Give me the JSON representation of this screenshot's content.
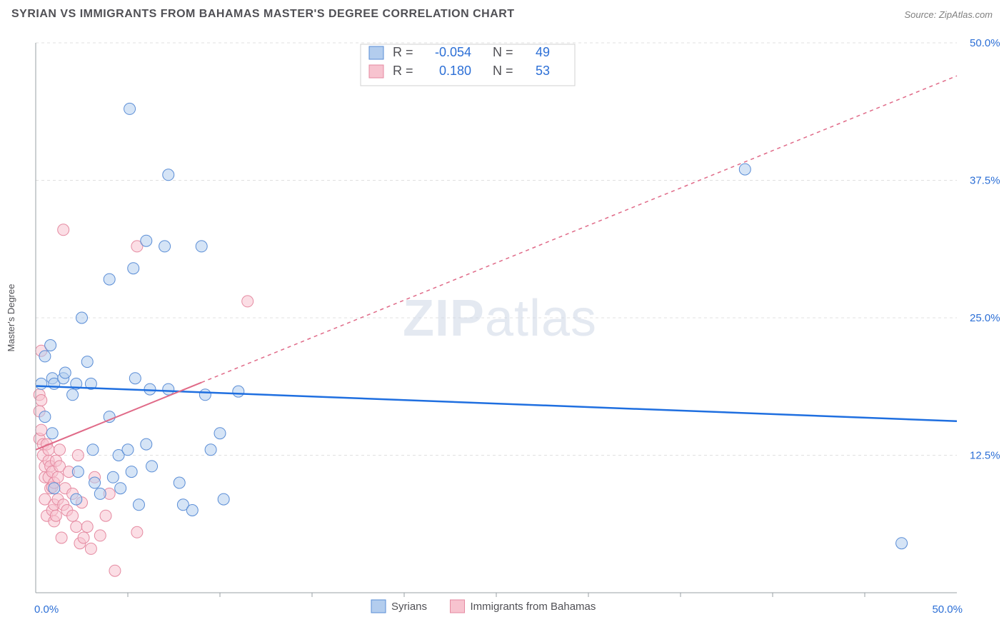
{
  "header": {
    "title": "SYRIAN VS IMMIGRANTS FROM BAHAMAS MASTER'S DEGREE CORRELATION CHART",
    "source": "Source: ZipAtlas.com"
  },
  "watermark": {
    "part1": "ZIP",
    "part2": "atlas"
  },
  "chart": {
    "type": "scatter",
    "background_color": "#ffffff",
    "grid_color": "#e0e0e0",
    "axis_color": "#9aa0a6",
    "y_axis_label": "Master's Degree",
    "y_axis_label_fontsize": 13,
    "xlim": [
      0,
      50
    ],
    "ylim": [
      0,
      50
    ],
    "x_ticks": [
      0,
      50
    ],
    "x_tick_labels": [
      "0.0%",
      "50.0%"
    ],
    "x_minor_ticks": [
      5,
      10,
      15,
      20,
      25,
      30,
      35,
      40,
      45
    ],
    "y_ticks": [
      12.5,
      25.0,
      37.5,
      50.0
    ],
    "y_tick_labels": [
      "12.5%",
      "25.0%",
      "37.5%",
      "50.0%"
    ],
    "tick_label_color": "#2c6fd6",
    "tick_label_fontsize": 15,
    "marker_radius": 8,
    "marker_opacity": 0.55,
    "series": [
      {
        "name": "Syrians",
        "fill": "#b3cdee",
        "stroke": "#5a8dd6",
        "points": [
          [
            0.3,
            19.0
          ],
          [
            0.5,
            21.5
          ],
          [
            0.5,
            16.0
          ],
          [
            0.8,
            22.5
          ],
          [
            0.9,
            19.5
          ],
          [
            1.0,
            19.0
          ],
          [
            0.9,
            14.5
          ],
          [
            1.0,
            9.5
          ],
          [
            1.5,
            19.5
          ],
          [
            1.6,
            20.0
          ],
          [
            2.0,
            18.0
          ],
          [
            2.2,
            19.0
          ],
          [
            2.3,
            11.0
          ],
          [
            2.2,
            8.5
          ],
          [
            2.5,
            25.0
          ],
          [
            2.8,
            21.0
          ],
          [
            3.0,
            19.0
          ],
          [
            3.2,
            10.0
          ],
          [
            3.1,
            13.0
          ],
          [
            3.5,
            9.0
          ],
          [
            4.0,
            16.0
          ],
          [
            4.0,
            28.5
          ],
          [
            4.2,
            10.5
          ],
          [
            4.5,
            12.5
          ],
          [
            4.6,
            9.5
          ],
          [
            5.1,
            44.0
          ],
          [
            5.3,
            29.5
          ],
          [
            5.4,
            19.5
          ],
          [
            5.0,
            13.0
          ],
          [
            5.2,
            11.0
          ],
          [
            5.6,
            8.0
          ],
          [
            6.0,
            32.0
          ],
          [
            6.2,
            18.5
          ],
          [
            6.0,
            13.5
          ],
          [
            6.3,
            11.5
          ],
          [
            7.0,
            31.5
          ],
          [
            7.2,
            38.0
          ],
          [
            7.2,
            18.5
          ],
          [
            7.8,
            10.0
          ],
          [
            8.0,
            8.0
          ],
          [
            8.5,
            7.5
          ],
          [
            9.0,
            31.5
          ],
          [
            9.2,
            18.0
          ],
          [
            9.5,
            13.0
          ],
          [
            10.0,
            14.5
          ],
          [
            10.2,
            8.5
          ],
          [
            11.0,
            18.3
          ],
          [
            38.5,
            38.5
          ],
          [
            47.0,
            4.5
          ]
        ],
        "regression": {
          "x1": 0,
          "y1": 18.8,
          "x2": 50,
          "y2": 15.6,
          "color": "#1f6fe0",
          "width": 2.5,
          "dash": ""
        }
      },
      {
        "name": "Immigrants from Bahamas",
        "fill": "#f7c3cf",
        "stroke": "#e58aa1",
        "points": [
          [
            0.2,
            18.0
          ],
          [
            0.2,
            16.5
          ],
          [
            0.2,
            14.0
          ],
          [
            0.3,
            17.5
          ],
          [
            0.3,
            14.8
          ],
          [
            0.3,
            22.0
          ],
          [
            0.4,
            12.5
          ],
          [
            0.4,
            13.5
          ],
          [
            0.5,
            10.5
          ],
          [
            0.5,
            8.5
          ],
          [
            0.5,
            11.5
          ],
          [
            0.6,
            7.0
          ],
          [
            0.6,
            13.5
          ],
          [
            0.7,
            10.5
          ],
          [
            0.7,
            12.0
          ],
          [
            0.7,
            13.0
          ],
          [
            0.8,
            9.5
          ],
          [
            0.8,
            11.5
          ],
          [
            0.9,
            7.5
          ],
          [
            0.9,
            9.6
          ],
          [
            0.9,
            11.0
          ],
          [
            1.0,
            6.5
          ],
          [
            1.0,
            8.0
          ],
          [
            1.0,
            10.0
          ],
          [
            1.1,
            7.0
          ],
          [
            1.1,
            12.0
          ],
          [
            1.2,
            8.5
          ],
          [
            1.2,
            10.5
          ],
          [
            1.3,
            11.5
          ],
          [
            1.3,
            13.0
          ],
          [
            1.4,
            5.0
          ],
          [
            1.5,
            33.0
          ],
          [
            1.5,
            8.0
          ],
          [
            1.6,
            9.5
          ],
          [
            1.7,
            7.5
          ],
          [
            1.8,
            11.0
          ],
          [
            2.0,
            9.0
          ],
          [
            2.0,
            7.0
          ],
          [
            2.2,
            6.0
          ],
          [
            2.3,
            12.5
          ],
          [
            2.4,
            4.5
          ],
          [
            2.5,
            8.2
          ],
          [
            2.6,
            5.0
          ],
          [
            2.8,
            6.0
          ],
          [
            3.0,
            4.0
          ],
          [
            3.2,
            10.5
          ],
          [
            3.5,
            5.2
          ],
          [
            3.8,
            7.0
          ],
          [
            4.0,
            9.0
          ],
          [
            4.3,
            2.0
          ],
          [
            5.5,
            31.5
          ],
          [
            5.5,
            5.5
          ],
          [
            11.5,
            26.5
          ]
        ],
        "regression": {
          "x1": 0,
          "y1": 13.0,
          "x2": 50,
          "y2": 47.0,
          "solid_until_x": 9.0,
          "color": "#e06a88",
          "width": 2,
          "dash": "5 5"
        }
      }
    ],
    "top_legend": {
      "bg": "#ffffff",
      "border": "#d0d0d0",
      "rows": [
        {
          "swatch": "blue",
          "r_label": "R =",
          "r_value": "-0.054",
          "n_label": "N =",
          "n_value": "49"
        },
        {
          "swatch": "pink",
          "r_label": "R =",
          "r_value": "0.180",
          "n_label": "N =",
          "n_value": "53"
        }
      ],
      "label_color": "#505055",
      "value_color": "#2c6fd6",
      "fontsize": 18
    },
    "bottom_legend": {
      "items": [
        {
          "swatch": "blue",
          "label": "Syrians"
        },
        {
          "swatch": "pink",
          "label": "Immigrants from Bahamas"
        }
      ],
      "fontsize": 15
    }
  }
}
